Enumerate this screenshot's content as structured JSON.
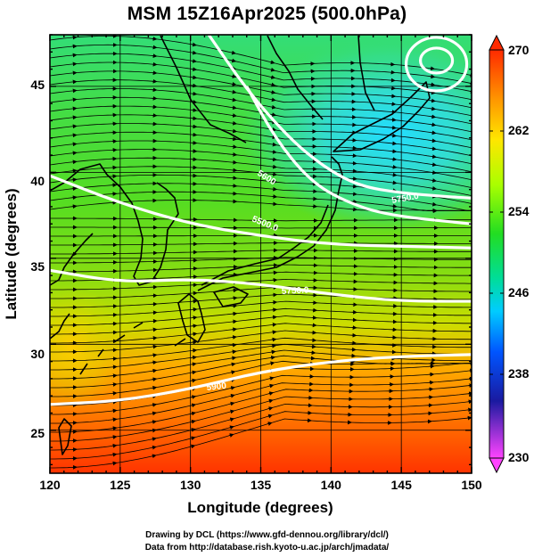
{
  "title": "MSM 15Z16Apr2025 (500.0hPa)",
  "axes": {
    "xlabel": "Longitude (degrees)",
    "ylabel": "Latitude  (degrees)",
    "x_ticks": [
      "120",
      "125",
      "130",
      "135",
      "140",
      "145",
      "150"
    ],
    "y_ticks": [
      "45",
      "40",
      "35",
      "30",
      "25"
    ]
  },
  "colorbar": {
    "labels": [
      "270",
      "262",
      "254",
      "246",
      "238",
      "230"
    ],
    "colors": [
      "#ff2a00",
      "#ff9500",
      "#ffe600",
      "#aaff00",
      "#22dd22",
      "#00dd99",
      "#00ccff",
      "#0055ff",
      "#1a1aa0",
      "#ff44ff"
    ]
  },
  "contours": {
    "labels": [
      "5600",
      "5500.0",
      "5750.0",
      "5750.0",
      "5900"
    ]
  },
  "credits": {
    "line1": "Drawing by DCL (https://www.gfd-dennou.org/library/dcl/)",
    "line2": "Data from http://database.rish.kyoto-u.ac.jp/arch/jmadata/"
  },
  "map_data": {
    "lon_range": [
      120,
      150
    ],
    "lat_range": [
      22.5,
      48
    ],
    "field": "temperature (K) with wind streamlines",
    "contours": [
      {
        "label": "5600",
        "points": [
          [
            134,
            45
          ],
          [
            136,
            42
          ],
          [
            138.5,
            39.5
          ],
          [
            141,
            38.3
          ],
          [
            144,
            37.5
          ],
          [
            150,
            37
          ]
        ]
      },
      {
        "label": "5500.0",
        "points": [
          [
            131.3,
            48
          ],
          [
            134,
            44.8
          ],
          [
            137,
            42
          ],
          [
            139.5,
            40.3
          ],
          [
            142,
            39.2
          ],
          [
            145,
            38.8
          ],
          [
            148,
            38.6
          ],
          [
            150,
            38.5
          ]
        ]
      },
      {
        "label": "5750.0",
        "points": [
          [
            120,
            39.8
          ],
          [
            125,
            38.2
          ],
          [
            130,
            37
          ],
          [
            135,
            36.3
          ],
          [
            140,
            35.8
          ],
          [
            145,
            35.7
          ],
          [
            150,
            35.6
          ]
        ]
      },
      {
        "label": "5750.0",
        "points": [
          [
            120,
            34.3
          ],
          [
            125,
            33.6
          ],
          [
            130,
            33.8
          ],
          [
            135,
            33.5
          ],
          [
            140,
            32.9
          ],
          [
            145,
            32.5
          ],
          [
            150,
            32.5
          ]
        ]
      },
      {
        "label": "5900",
        "points": [
          [
            120,
            26.5
          ],
          [
            125,
            26.7
          ],
          [
            130,
            27.4
          ],
          [
            135,
            28.4
          ],
          [
            140,
            29
          ],
          [
            145,
            29.3
          ],
          [
            150,
            29.4
          ]
        ]
      }
    ],
    "low_center": [
      147.5,
      46.5
    ]
  }
}
